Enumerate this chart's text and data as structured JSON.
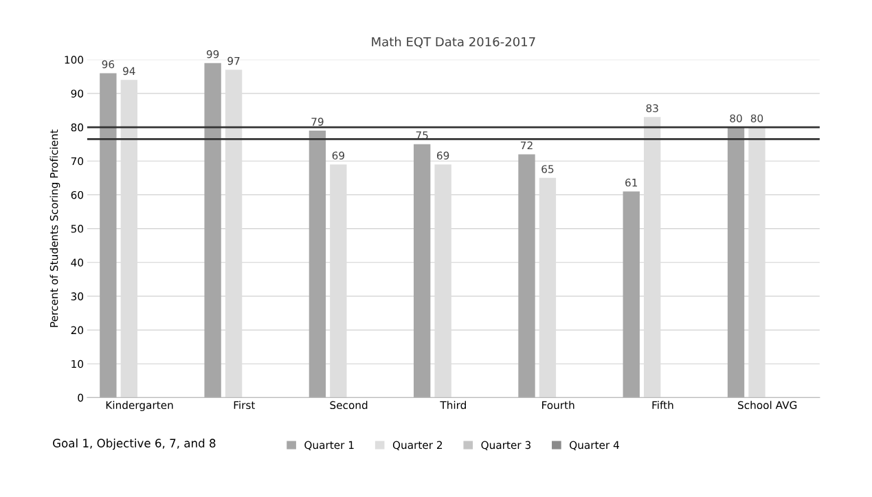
{
  "chart_data": {
    "type": "bar",
    "title": "Math EQT Data 2016-2017",
    "ylabel": "Percent of Students Scoring Proficient",
    "categories": [
      "Kindergarten",
      "First",
      "Second",
      "Third",
      "Fourth",
      "Fifth",
      "School AVG"
    ],
    "series": [
      {
        "name": "Quarter 1",
        "color": "#a6a6a6",
        "values": [
          96,
          99,
          79,
          75,
          72,
          61,
          80
        ]
      },
      {
        "name": "Quarter 2",
        "color": "#dedede",
        "values": [
          94,
          97,
          69,
          69,
          65,
          83,
          80
        ]
      },
      {
        "name": "Quarter 3",
        "color": "#c4c4c4",
        "values": [
          null,
          null,
          null,
          null,
          null,
          null,
          null
        ]
      },
      {
        "name": "Quarter 4",
        "color": "#8a8a8a",
        "values": [
          null,
          null,
          null,
          null,
          null,
          null,
          null
        ]
      }
    ],
    "ylim": [
      0,
      100
    ],
    "yticks": [
      0,
      10,
      20,
      30,
      40,
      50,
      60,
      70,
      80,
      90,
      100
    ],
    "grid": "y",
    "legend": "bottom",
    "data_labels": true,
    "ref_lines": [
      {
        "axis": "y",
        "value": 76.5,
        "color": "#333333"
      },
      {
        "axis": "y",
        "value": 80,
        "color": "#333333"
      }
    ],
    "annotations": [
      "Goal 1, Objective 6, 7, and 8"
    ]
  }
}
